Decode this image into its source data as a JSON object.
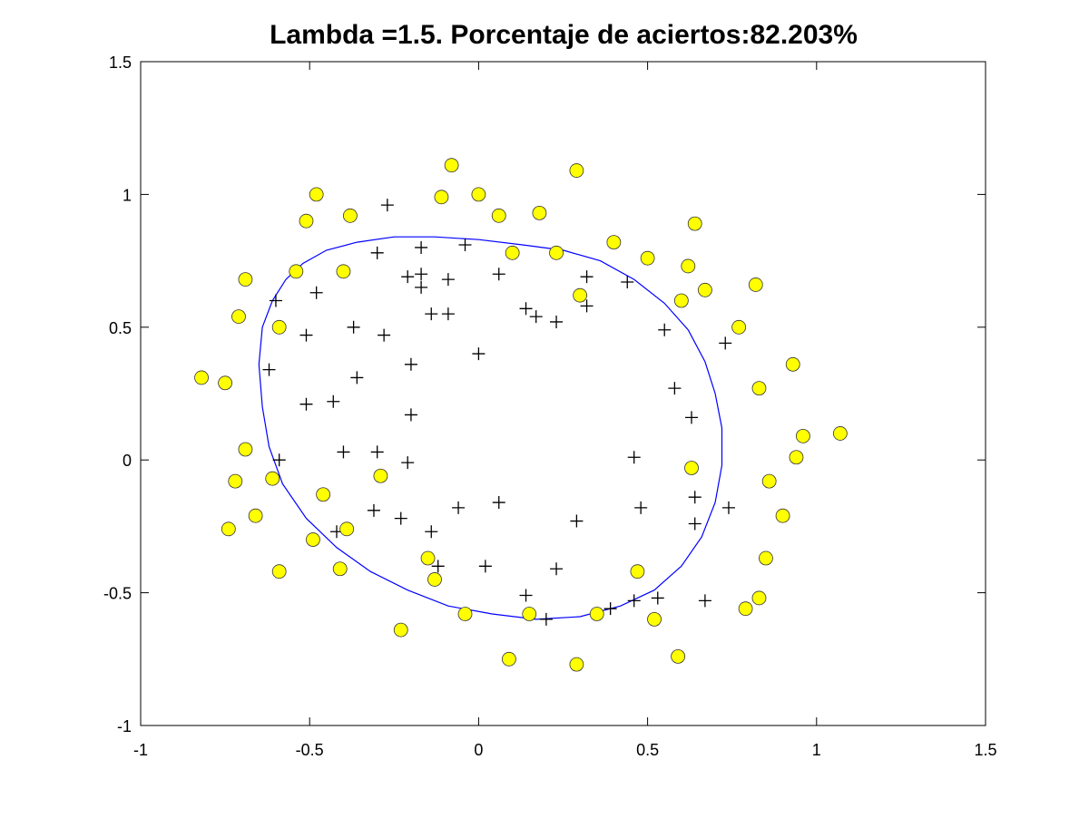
{
  "chart_data": {
    "type": "scatter",
    "title": "Lambda =1.5. Porcentaje de aciertos:82.203%",
    "xlabel": "",
    "ylabel": "",
    "xlim": [
      -1,
      1.5
    ],
    "ylim": [
      -1,
      1.5
    ],
    "xticks": [
      {
        "value": -1,
        "label": "-1"
      },
      {
        "value": -0.5,
        "label": "-0.5"
      },
      {
        "value": 0,
        "label": "0"
      },
      {
        "value": 0.5,
        "label": "0.5"
      },
      {
        "value": 1,
        "label": "1"
      },
      {
        "value": 1.5,
        "label": "1.5"
      }
    ],
    "yticks": [
      {
        "value": -1,
        "label": "-1"
      },
      {
        "value": -0.5,
        "label": "-0.5"
      },
      {
        "value": 0,
        "label": "0"
      },
      {
        "value": 0.5,
        "label": "0.5"
      },
      {
        "value": 1,
        "label": "1"
      },
      {
        "value": 1.5,
        "label": "1.5"
      }
    ],
    "grid": false,
    "colors": {
      "positive": "#000000",
      "negative_fill": "#ffff00",
      "negative_edge": "#333333",
      "boundary": "#0000ff"
    },
    "series": [
      {
        "marker": "plus",
        "points": [
          [
            -0.27,
            0.96
          ],
          [
            -0.17,
            0.8
          ],
          [
            -0.3,
            0.78
          ],
          [
            -0.04,
            0.81
          ],
          [
            -0.21,
            0.69
          ],
          [
            -0.17,
            0.7
          ],
          [
            -0.09,
            0.68
          ],
          [
            -0.17,
            0.65
          ],
          [
            0.06,
            0.7
          ],
          [
            -0.6,
            0.6
          ],
          [
            -0.48,
            0.63
          ],
          [
            -0.14,
            0.55
          ],
          [
            -0.09,
            0.55
          ],
          [
            0.14,
            0.57
          ],
          [
            0.17,
            0.54
          ],
          [
            0.23,
            0.52
          ],
          [
            0.32,
            0.69
          ],
          [
            0.32,
            0.58
          ],
          [
            0.44,
            0.67
          ],
          [
            -0.37,
            0.5
          ],
          [
            -0.51,
            0.47
          ],
          [
            -0.28,
            0.47
          ],
          [
            0.55,
            0.49
          ],
          [
            0.73,
            0.44
          ],
          [
            0.0,
            0.4
          ],
          [
            -0.2,
            0.36
          ],
          [
            -0.62,
            0.34
          ],
          [
            -0.36,
            0.31
          ],
          [
            0.58,
            0.27
          ],
          [
            -0.51,
            0.21
          ],
          [
            -0.43,
            0.22
          ],
          [
            -0.2,
            0.17
          ],
          [
            0.63,
            0.16
          ],
          [
            -0.4,
            0.03
          ],
          [
            -0.3,
            0.03
          ],
          [
            -0.59,
            0.0
          ],
          [
            -0.21,
            -0.01
          ],
          [
            0.46,
            0.01
          ],
          [
            0.06,
            -0.16
          ],
          [
            -0.06,
            -0.18
          ],
          [
            -0.31,
            -0.19
          ],
          [
            -0.23,
            -0.22
          ],
          [
            0.29,
            -0.23
          ],
          [
            0.48,
            -0.18
          ],
          [
            0.64,
            -0.14
          ],
          [
            0.74,
            -0.18
          ],
          [
            0.64,
            -0.24
          ],
          [
            -0.42,
            -0.27
          ],
          [
            -0.14,
            -0.27
          ],
          [
            -0.12,
            -0.4
          ],
          [
            0.02,
            -0.4
          ],
          [
            0.23,
            -0.41
          ],
          [
            0.14,
            -0.51
          ],
          [
            0.46,
            -0.53
          ],
          [
            0.53,
            -0.52
          ],
          [
            0.67,
            -0.53
          ],
          [
            0.39,
            -0.56
          ],
          [
            0.2,
            -0.6
          ]
        ]
      },
      {
        "marker": "circle",
        "points": [
          [
            -0.08,
            1.11
          ],
          [
            0.29,
            1.09
          ],
          [
            -0.48,
            1.0
          ],
          [
            -0.11,
            0.99
          ],
          [
            0.0,
            1.0
          ],
          [
            -0.51,
            0.9
          ],
          [
            -0.38,
            0.92
          ],
          [
            0.06,
            0.92
          ],
          [
            0.18,
            0.93
          ],
          [
            0.64,
            0.89
          ],
          [
            0.4,
            0.82
          ],
          [
            0.1,
            0.78
          ],
          [
            0.23,
            0.78
          ],
          [
            0.5,
            0.76
          ],
          [
            0.62,
            0.73
          ],
          [
            -0.69,
            0.68
          ],
          [
            -0.54,
            0.71
          ],
          [
            -0.4,
            0.71
          ],
          [
            0.67,
            0.64
          ],
          [
            0.82,
            0.66
          ],
          [
            0.3,
            0.62
          ],
          [
            0.6,
            0.6
          ],
          [
            -0.71,
            0.54
          ],
          [
            -0.59,
            0.5
          ],
          [
            0.77,
            0.5
          ],
          [
            -0.82,
            0.31
          ],
          [
            -0.75,
            0.29
          ],
          [
            0.93,
            0.36
          ],
          [
            0.83,
            0.27
          ],
          [
            1.07,
            0.1
          ],
          [
            0.96,
            0.09
          ],
          [
            -0.69,
            0.04
          ],
          [
            0.94,
            0.01
          ],
          [
            0.63,
            -0.03
          ],
          [
            -0.72,
            -0.08
          ],
          [
            -0.61,
            -0.07
          ],
          [
            -0.29,
            -0.06
          ],
          [
            0.86,
            -0.08
          ],
          [
            -0.46,
            -0.13
          ],
          [
            -0.66,
            -0.21
          ],
          [
            0.9,
            -0.21
          ],
          [
            -0.74,
            -0.26
          ],
          [
            -0.39,
            -0.26
          ],
          [
            -0.49,
            -0.3
          ],
          [
            -0.15,
            -0.37
          ],
          [
            0.85,
            -0.37
          ],
          [
            -0.59,
            -0.42
          ],
          [
            -0.41,
            -0.41
          ],
          [
            -0.13,
            -0.45
          ],
          [
            0.47,
            -0.42
          ],
          [
            0.83,
            -0.52
          ],
          [
            0.79,
            -0.56
          ],
          [
            -0.04,
            -0.58
          ],
          [
            0.15,
            -0.58
          ],
          [
            0.35,
            -0.58
          ],
          [
            0.52,
            -0.6
          ],
          [
            -0.23,
            -0.64
          ],
          [
            0.09,
            -0.75
          ],
          [
            0.59,
            -0.74
          ],
          [
            0.29,
            -0.77
          ]
        ]
      }
    ],
    "decision_boundary": [
      [
        -0.57,
        0.68
      ],
      [
        -0.52,
        0.74
      ],
      [
        -0.45,
        0.79
      ],
      [
        -0.36,
        0.82
      ],
      [
        -0.25,
        0.84
      ],
      [
        -0.13,
        0.84
      ],
      [
        0.0,
        0.83
      ],
      [
        0.13,
        0.81
      ],
      [
        0.25,
        0.79
      ],
      [
        0.36,
        0.75
      ],
      [
        0.46,
        0.68
      ],
      [
        0.55,
        0.59
      ],
      [
        0.62,
        0.49
      ],
      [
        0.67,
        0.37
      ],
      [
        0.7,
        0.25
      ],
      [
        0.72,
        0.12
      ],
      [
        0.72,
        -0.02
      ],
      [
        0.7,
        -0.16
      ],
      [
        0.66,
        -0.29
      ],
      [
        0.6,
        -0.4
      ],
      [
        0.52,
        -0.49
      ],
      [
        0.42,
        -0.55
      ],
      [
        0.3,
        -0.59
      ],
      [
        0.17,
        -0.6
      ],
      [
        0.04,
        -0.58
      ],
      [
        -0.09,
        -0.55
      ],
      [
        -0.21,
        -0.49
      ],
      [
        -0.32,
        -0.42
      ],
      [
        -0.42,
        -0.33
      ],
      [
        -0.51,
        -0.22
      ],
      [
        -0.58,
        -0.09
      ],
      [
        -0.62,
        0.05
      ],
      [
        -0.64,
        0.2
      ],
      [
        -0.65,
        0.36
      ],
      [
        -0.64,
        0.5
      ],
      [
        -0.61,
        0.6
      ],
      [
        -0.57,
        0.68
      ]
    ]
  }
}
